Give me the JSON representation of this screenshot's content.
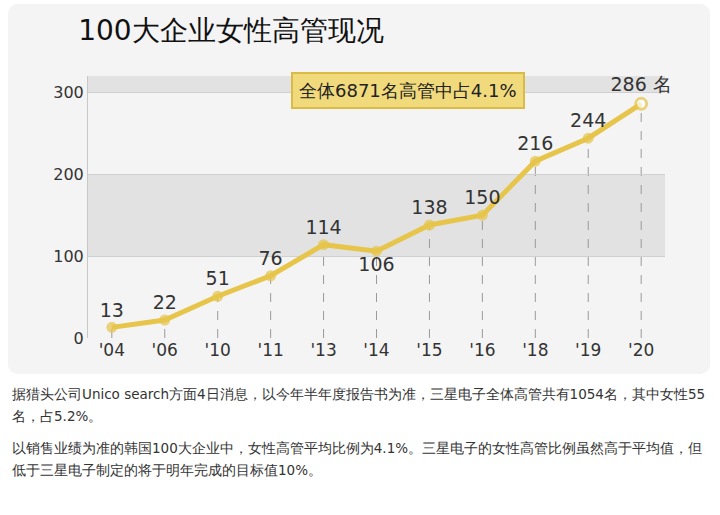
{
  "chart_data": {
    "type": "line",
    "title": "100大企业女性高管现况",
    "categories": [
      "'04",
      "'06",
      "'10",
      "'11",
      "'13",
      "'14",
      "'15",
      "'16",
      "'18",
      "'19",
      "'20"
    ],
    "values": [
      13,
      22,
      51,
      76,
      114,
      106,
      138,
      150,
      216,
      244,
      286
    ],
    "value_labels": [
      "13",
      "22",
      "51",
      "76",
      "114",
      "106",
      "138",
      "150",
      "216",
      "244",
      "286 名"
    ],
    "color": "#e6c54a",
    "ylim": [
      0,
      320
    ],
    "yticks": [
      0,
      100,
      200,
      300
    ],
    "grid": true,
    "data_labels": true,
    "marker": "circle",
    "annotations": [
      "全体6871名高管中占4.1%"
    ]
  },
  "article": {
    "paragraphs": [
      "据猎头公司Unico search方面4日消息，以今年半年度报告书为准，三星电子全体高管共有1054名，其中女性55名，占5.2%。",
      "以销售业绩为准的韩国100大企业中，女性高管平均比例为4.1%。三星电子的女性高管比例虽然高于平均值，但低于三星电子制定的将于明年完成的目标值10%。"
    ]
  }
}
